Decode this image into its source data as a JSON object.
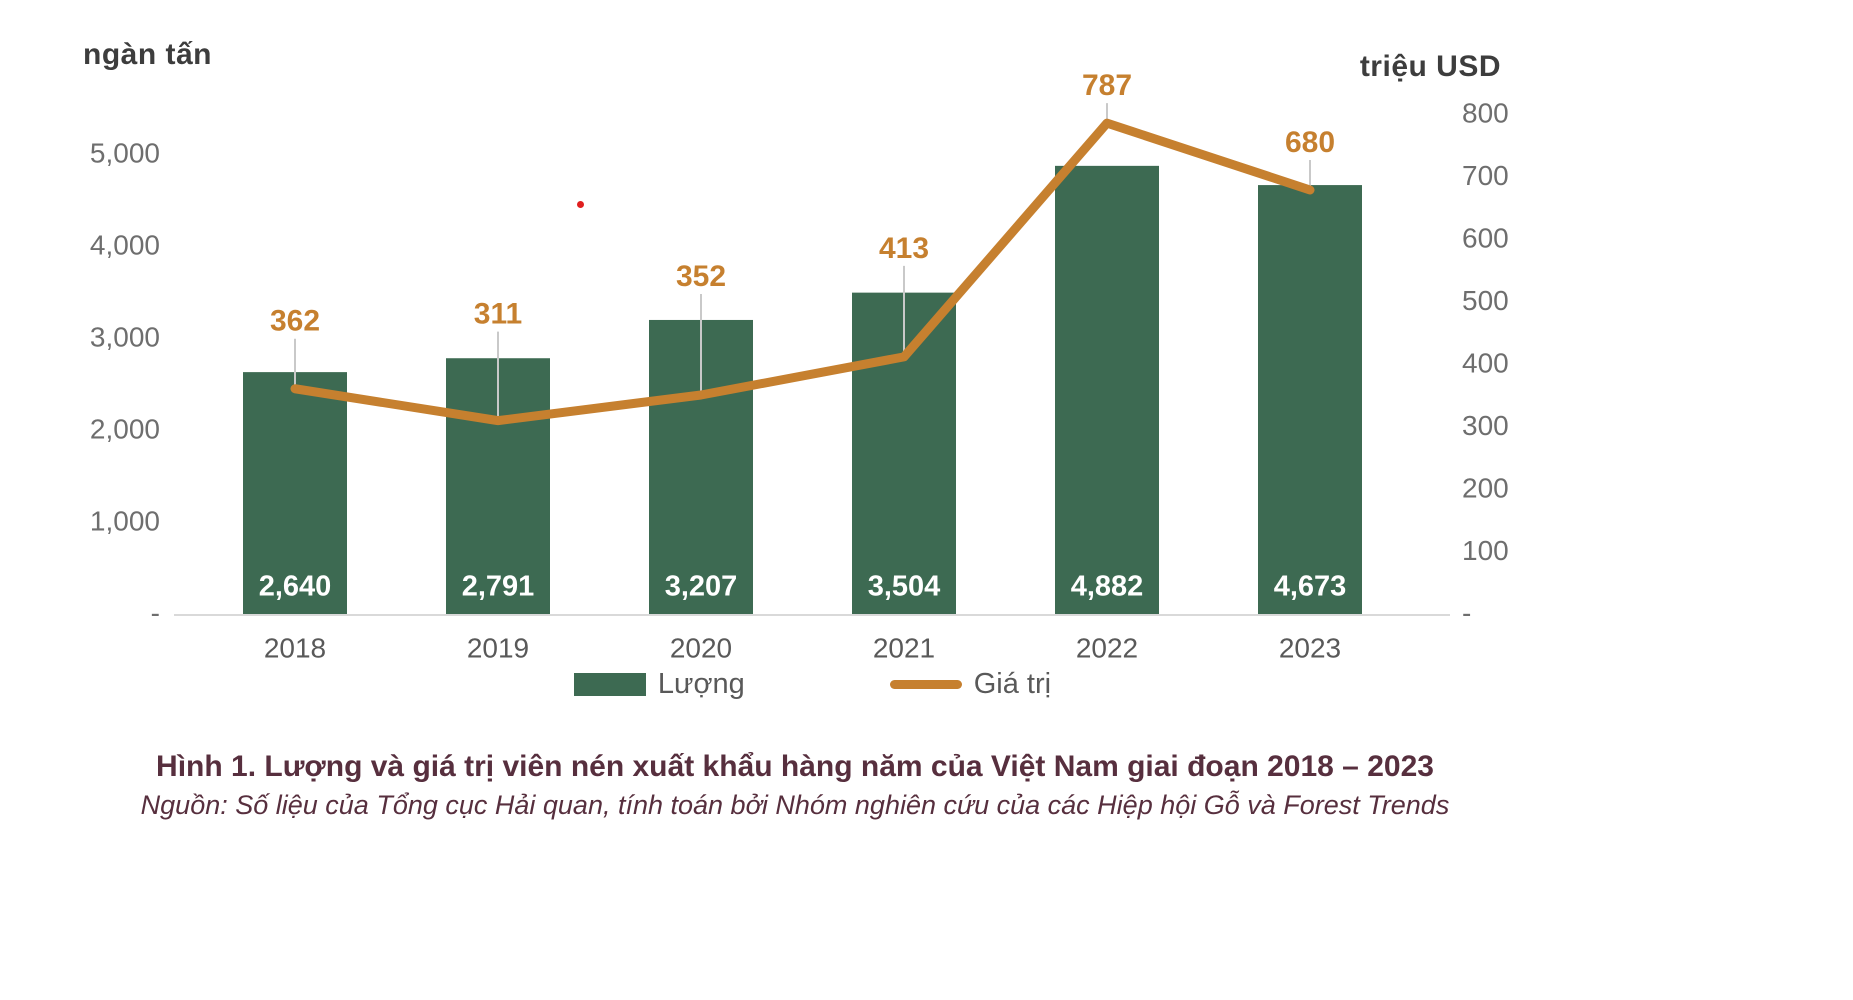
{
  "left_axis": {
    "title": "ngàn tấn",
    "ticks": [
      "5,000",
      "4,000",
      "3,000",
      "2,000",
      "1,000",
      "-"
    ]
  },
  "right_axis": {
    "title": "triệu USD",
    "ticks": [
      "800",
      "700",
      "600",
      "500",
      "400",
      "300",
      "200",
      "100",
      "-"
    ]
  },
  "legend": [
    {
      "label": "Lượng",
      "swatch": "bar"
    },
    {
      "label": "Giá trị",
      "swatch": "line"
    }
  ],
  "caption": {
    "title": "Hình 1. Lượng và giá trị viên nén xuất khẩu hàng năm của Việt Nam giai đoạn 2018 – 2023",
    "source": "Nguồn: Số liệu của Tổng cục Hải quan, tính toán bởi Nhóm nghiên cứu của các Hiệp hội Gỗ và Forest Trends"
  },
  "colors": {
    "bar": "#3d6a52",
    "line": "#c6802f",
    "tick_text": "#6e6e6e",
    "x_label": "#595959",
    "bar_label": "#ffffff",
    "axis_line": "#d9d9d9",
    "leader": "#c9c9c9",
    "caption": "#572f3e",
    "axis_title": "#3d3d3d",
    "artifact": "#e01f1f"
  },
  "chart_data": {
    "type": "bar+line",
    "title": "Hình 1. Lượng và giá trị viên nén xuất khẩu hàng năm của Việt Nam giai đoạn 2018 – 2023",
    "categories": [
      "2018",
      "2019",
      "2020",
      "2021",
      "2022",
      "2023"
    ],
    "series": [
      {
        "name": "Lượng",
        "type": "bar",
        "axis": "left",
        "unit": "ngàn tấn",
        "values": [
          2640,
          2791,
          3207,
          3504,
          4882,
          4673
        ],
        "labels": [
          "2,640",
          "2,791",
          "3,207",
          "3,504",
          "4,882",
          "4,673"
        ]
      },
      {
        "name": "Giá trị",
        "type": "line",
        "axis": "right",
        "unit": "triệu USD",
        "values": [
          362,
          311,
          352,
          413,
          787,
          680
        ],
        "labels": [
          "362",
          "311",
          "352",
          "413",
          "787",
          "680"
        ]
      }
    ],
    "left_ylim": [
      0,
      5000
    ],
    "right_ylim": [
      0,
      800
    ],
    "grid": false,
    "legend_position": "bottom",
    "label_offsets": [
      66,
      105,
      117,
      107,
      36,
      46
    ]
  }
}
